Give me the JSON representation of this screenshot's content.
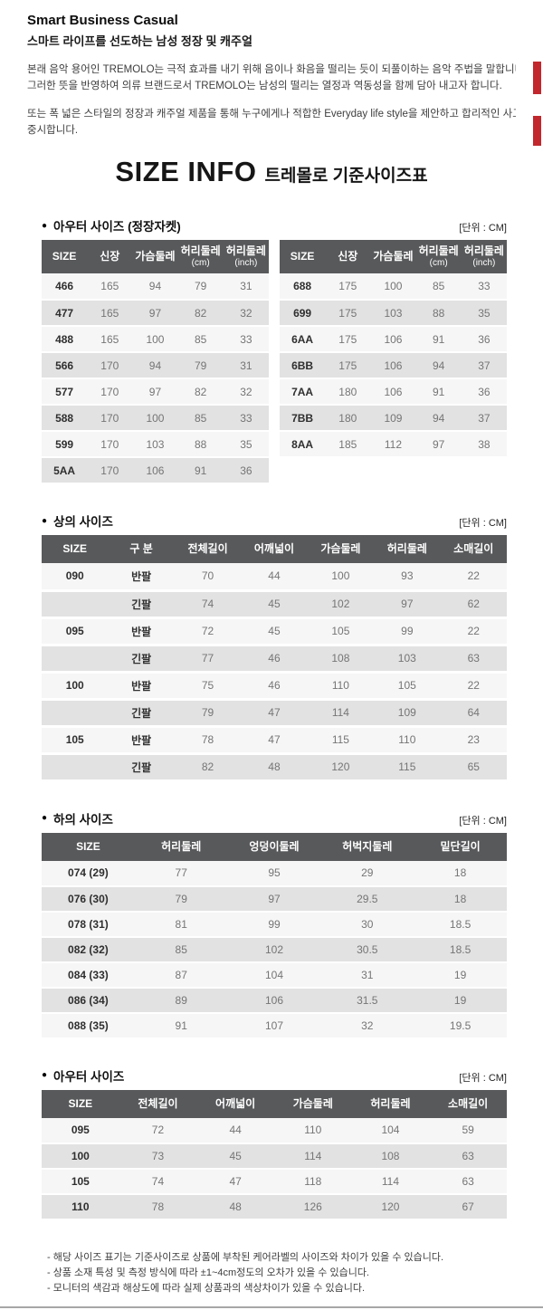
{
  "header": {
    "brand_title": "Smart Business Casual",
    "brand_subtitle": "스마트 라이프를 선도하는 남성 정장 및 캐주얼",
    "intro_para1_line1": "본래 음악 용어인 TREMOLO는 극적 효과를 내기 위해 음이나 화음을 떨리는 듯이 되풀이하는 음악 주법을 말합니다.",
    "intro_para1_line2": "그러한 뜻을 반영하여 의류 브랜드로서 TREMOLO는 남성의 떨리는 열정과 역동성을 함께 담아 내고자 합니다.",
    "intro_para2_line1": "또는 폭 넓은 스타일의 정장과 캐주얼 제품을 통해 누구에게나 적합한 Everyday life style을 제안하고 합리적인 사고와 가치를",
    "intro_para2_line2": "중시합니다."
  },
  "size_info": {
    "title": "SIZE INFO",
    "subtitle": "트레몰로 기준사이즈표"
  },
  "colors": {
    "table_header_bg": "#58595b",
    "table_header_text": "#ffffff",
    "row_light": "#f6f6f6",
    "row_dark": "#e2e2e2",
    "accent_red": "#c1272d"
  },
  "sections": {
    "outer_jacket": {
      "bullet": "●",
      "title": "아우터 사이즈 (정장자켓)",
      "unit": "[단위 : CM]",
      "columns": [
        {
          "label": "SIZE"
        },
        {
          "label": "신장"
        },
        {
          "label": "가슴둘레"
        },
        {
          "label": "허리둘레",
          "sub": "(cm)"
        },
        {
          "label": "허리둘레",
          "sub": "(inch)"
        }
      ],
      "left_rows": [
        [
          "466",
          "165",
          "94",
          "79",
          "31"
        ],
        [
          "477",
          "165",
          "97",
          "82",
          "32"
        ],
        [
          "488",
          "165",
          "100",
          "85",
          "33"
        ],
        [
          "566",
          "170",
          "94",
          "79",
          "31"
        ],
        [
          "577",
          "170",
          "97",
          "82",
          "32"
        ],
        [
          "588",
          "170",
          "100",
          "85",
          "33"
        ],
        [
          "599",
          "170",
          "103",
          "88",
          "35"
        ],
        [
          "5AA",
          "170",
          "106",
          "91",
          "36"
        ]
      ],
      "right_rows": [
        [
          "688",
          "175",
          "100",
          "85",
          "33"
        ],
        [
          "699",
          "175",
          "103",
          "88",
          "35"
        ],
        [
          "6AA",
          "175",
          "106",
          "91",
          "36"
        ],
        [
          "6BB",
          "175",
          "106",
          "94",
          "37"
        ],
        [
          "7AA",
          "180",
          "106",
          "91",
          "36"
        ],
        [
          "7BB",
          "180",
          "109",
          "94",
          "37"
        ],
        [
          "8AA",
          "185",
          "112",
          "97",
          "38"
        ]
      ]
    },
    "tops": {
      "bullet": "●",
      "title": "상의 사이즈",
      "unit": "[단위 : CM]",
      "columns": [
        {
          "label": "SIZE"
        },
        {
          "label": "구 분"
        },
        {
          "label": "전체길이"
        },
        {
          "label": "어깨넓이"
        },
        {
          "label": "가슴둘레"
        },
        {
          "label": "허리둘레"
        },
        {
          "label": "소매길이"
        }
      ],
      "rows": [
        [
          "090",
          "반팔",
          "70",
          "44",
          "100",
          "93",
          "22"
        ],
        [
          "",
          "긴팔",
          "74",
          "45",
          "102",
          "97",
          "62"
        ],
        [
          "095",
          "반팔",
          "72",
          "45",
          "105",
          "99",
          "22"
        ],
        [
          "",
          "긴팔",
          "77",
          "46",
          "108",
          "103",
          "63"
        ],
        [
          "100",
          "반팔",
          "75",
          "46",
          "110",
          "105",
          "22"
        ],
        [
          "",
          "긴팔",
          "79",
          "47",
          "114",
          "109",
          "64"
        ],
        [
          "105",
          "반팔",
          "78",
          "47",
          "115",
          "110",
          "23"
        ],
        [
          "",
          "긴팔",
          "82",
          "48",
          "120",
          "115",
          "65"
        ]
      ]
    },
    "bottoms": {
      "bullet": "●",
      "title": "하의 사이즈",
      "unit": "[단위 : CM]",
      "columns": [
        {
          "label": "SIZE"
        },
        {
          "label": "허리둘레"
        },
        {
          "label": "엉덩이둘레"
        },
        {
          "label": "허벅지둘레"
        },
        {
          "label": "밑단길이"
        }
      ],
      "rows": [
        [
          "074 (29)",
          "77",
          "95",
          "29",
          "18"
        ],
        [
          "076 (30)",
          "79",
          "97",
          "29.5",
          "18"
        ],
        [
          "078 (31)",
          "81",
          "99",
          "30",
          "18.5"
        ],
        [
          "082 (32)",
          "85",
          "102",
          "30.5",
          "18.5"
        ],
        [
          "084 (33)",
          "87",
          "104",
          "31",
          "19"
        ],
        [
          "086 (34)",
          "89",
          "106",
          "31.5",
          "19"
        ],
        [
          "088 (35)",
          "91",
          "107",
          "32",
          "19.5"
        ]
      ]
    },
    "outerwear": {
      "bullet": "●",
      "title": "아우터 사이즈",
      "unit": "[단위 : CM]",
      "columns": [
        {
          "label": "SIZE"
        },
        {
          "label": "전체길이"
        },
        {
          "label": "어깨넓이"
        },
        {
          "label": "가슴둘레"
        },
        {
          "label": "허리둘레"
        },
        {
          "label": "소매길이"
        }
      ],
      "rows": [
        [
          "095",
          "72",
          "44",
          "110",
          "104",
          "59"
        ],
        [
          "100",
          "73",
          "45",
          "114",
          "108",
          "63"
        ],
        [
          "105",
          "74",
          "47",
          "118",
          "114",
          "63"
        ],
        [
          "110",
          "78",
          "48",
          "126",
          "120",
          "67"
        ]
      ]
    }
  },
  "footer": {
    "notes": [
      "- 해당 사이즈 표기는 기준사이즈로 상품에 부착된 케어라벨의 사이즈와 차이가 있을 수 있습니다.",
      "- 상품 소재 특성 및 측정 방식에 따라 ±1~4cm정도의 오차가 있을 수 있습니다.",
      "- 모니터의 색감과 해상도에 따라 실제 상품과의 색상차이가 있을 수 있습니다."
    ]
  }
}
